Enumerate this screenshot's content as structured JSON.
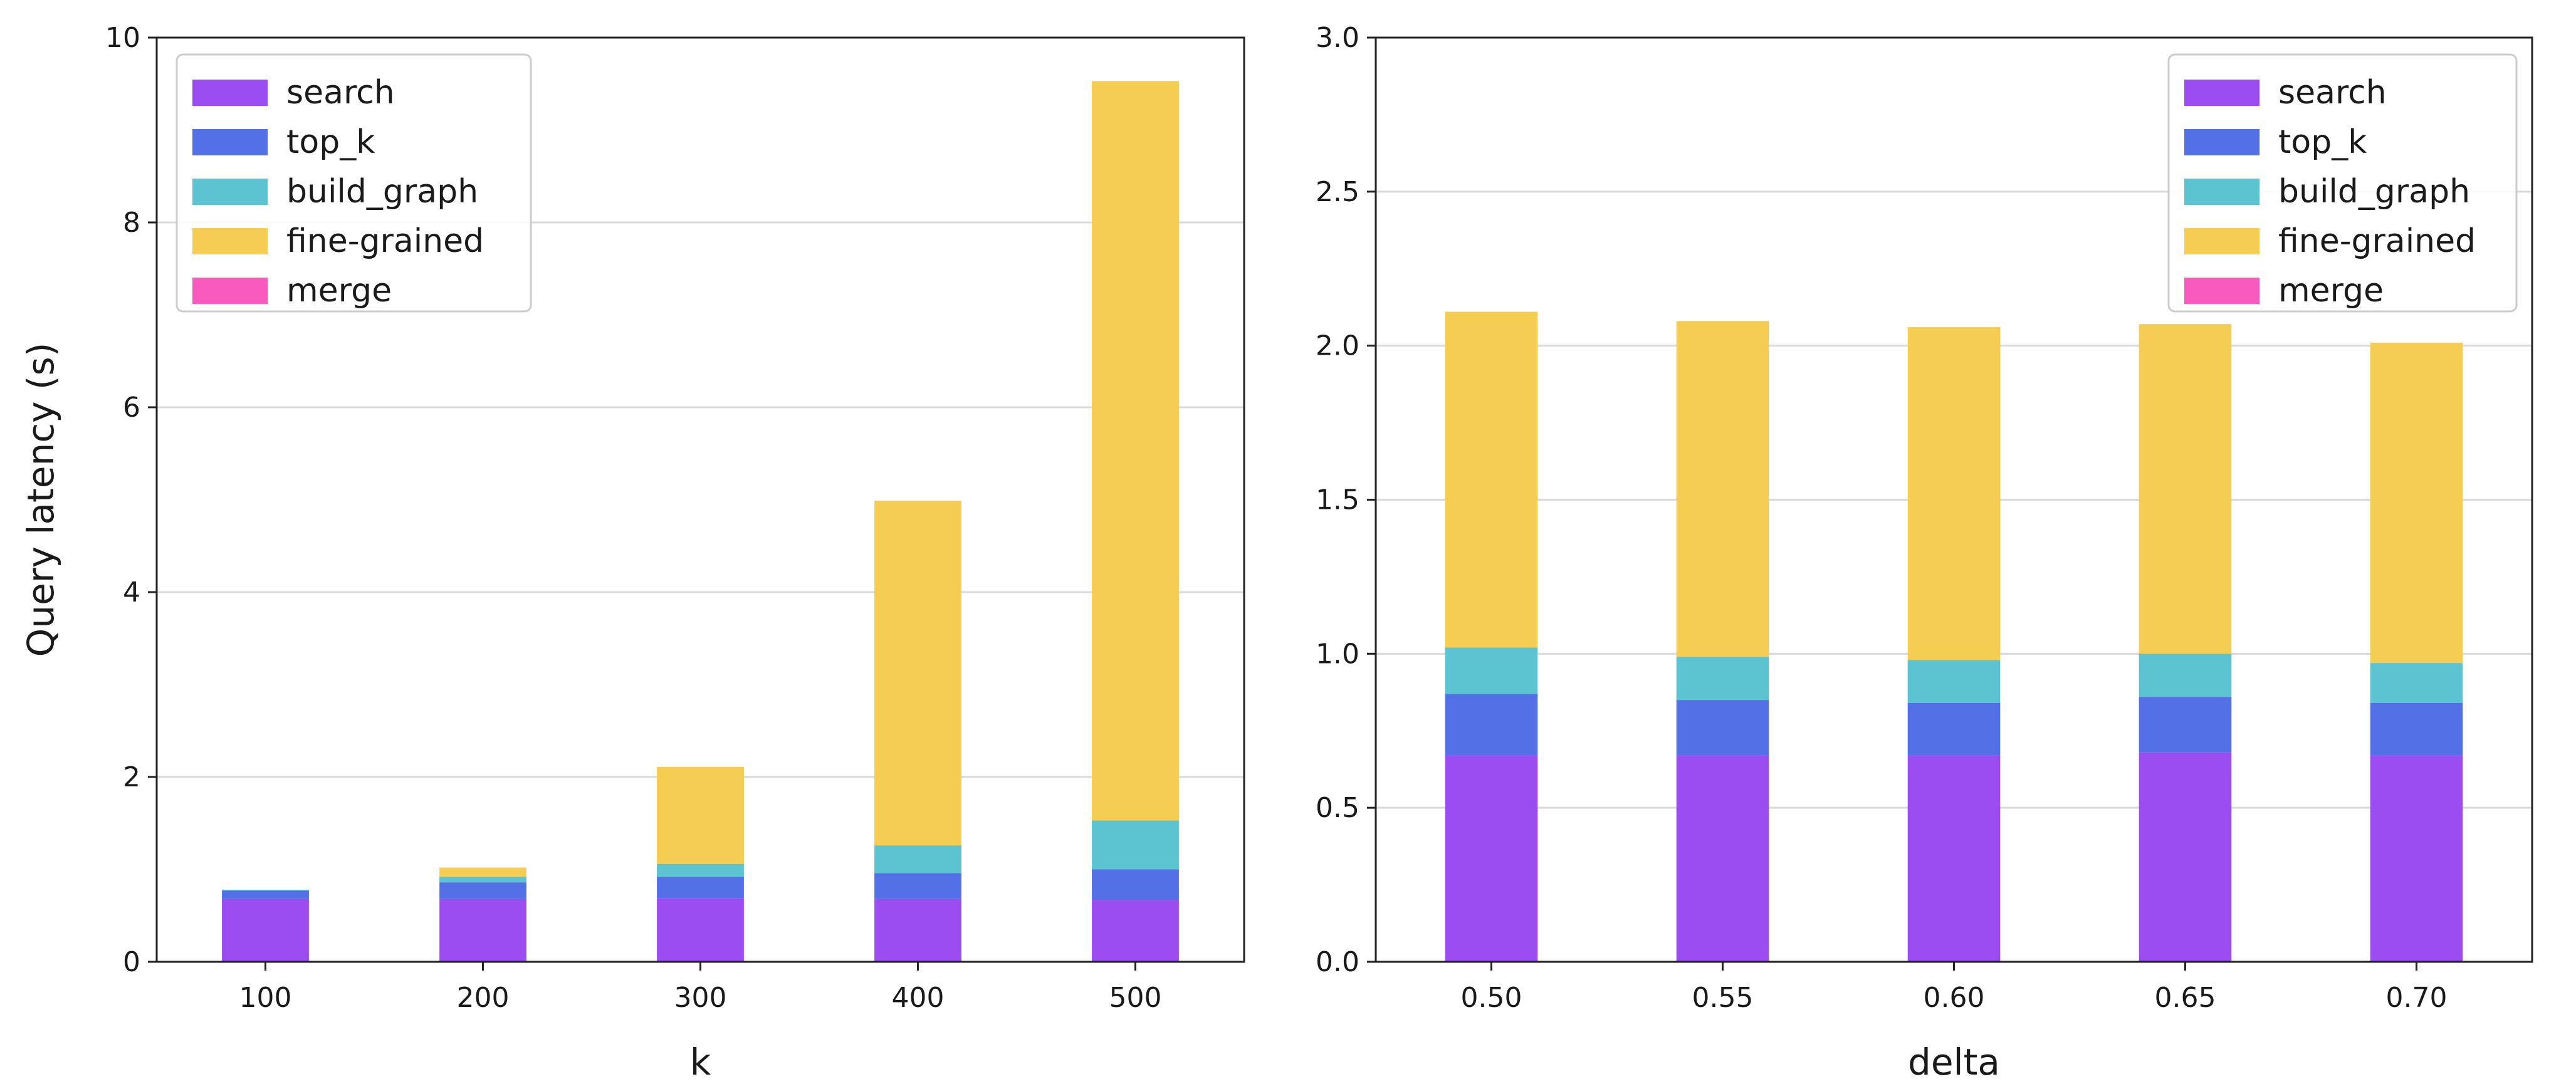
{
  "colors": {
    "search": "#9b4df2",
    "top_k": "#5470e6",
    "build_graph": "#5cc3d0",
    "fine-grained": "#f4cd52",
    "merge": "#f85bbd",
    "grid": "#d9d9d9",
    "axis": "#222222"
  },
  "chart_data": [
    {
      "type": "bar",
      "stacked": true,
      "title": "",
      "xlabel": "k",
      "ylabel": "Query latency (s)",
      "ylim": [
        0,
        10
      ],
      "yticks": [
        "0",
        "2",
        "4",
        "6",
        "8",
        "10"
      ],
      "grid": "y",
      "legend_position": "top-left",
      "categories": [
        "100",
        "200",
        "300",
        "400",
        "500"
      ],
      "series": [
        {
          "name": "search",
          "values": [
            0.68,
            0.68,
            0.69,
            0.68,
            0.67
          ]
        },
        {
          "name": "top_k",
          "values": [
            0.09,
            0.18,
            0.23,
            0.28,
            0.33
          ]
        },
        {
          "name": "build_graph",
          "values": [
            0.01,
            0.06,
            0.14,
            0.3,
            0.53
          ]
        },
        {
          "name": "fine-grained",
          "values": [
            0.0,
            0.1,
            1.05,
            3.73,
            8.0
          ]
        },
        {
          "name": "merge",
          "values": [
            0.0,
            0.0,
            0.0,
            0.0,
            0.0
          ]
        }
      ]
    },
    {
      "type": "bar",
      "stacked": true,
      "title": "",
      "xlabel": "delta",
      "ylabel": "",
      "ylim": [
        0,
        3.0
      ],
      "yticks": [
        "0.0",
        "0.5",
        "1.0",
        "1.5",
        "2.0",
        "2.5",
        "3.0"
      ],
      "grid": "y",
      "legend_position": "top-right",
      "categories": [
        "0.50",
        "0.55",
        "0.60",
        "0.65",
        "0.70"
      ],
      "series": [
        {
          "name": "search",
          "values": [
            0.67,
            0.67,
            0.67,
            0.68,
            0.67
          ]
        },
        {
          "name": "top_k",
          "values": [
            0.2,
            0.18,
            0.17,
            0.18,
            0.17
          ]
        },
        {
          "name": "build_graph",
          "values": [
            0.15,
            0.14,
            0.14,
            0.14,
            0.13
          ]
        },
        {
          "name": "fine-grained",
          "values": [
            1.09,
            1.09,
            1.08,
            1.07,
            1.04
          ]
        },
        {
          "name": "merge",
          "values": [
            0.0,
            0.0,
            0.0,
            0.0,
            0.0
          ]
        }
      ]
    }
  ]
}
